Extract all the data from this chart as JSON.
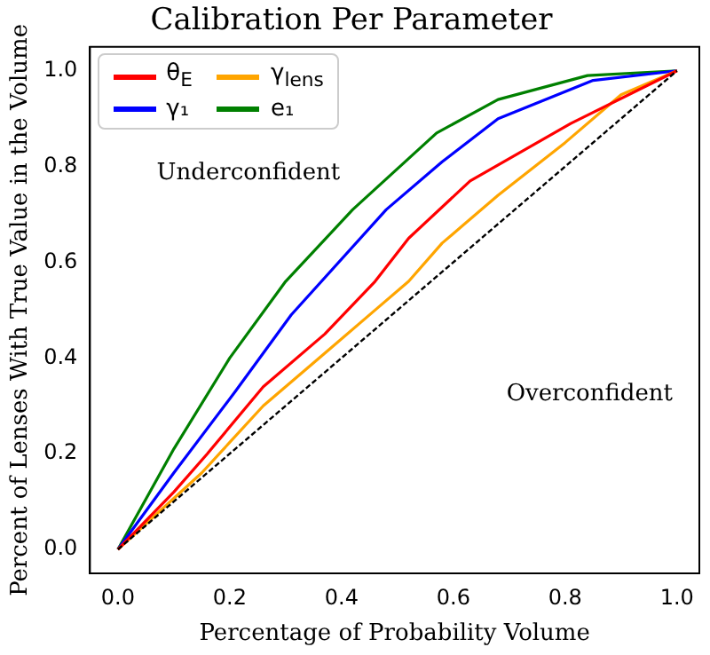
{
  "chart_data": {
    "type": "line",
    "title": "Calibration Per Parameter",
    "xlabel": "Percentage of Probability Volume",
    "ylabel": "Percent of Lenses With True Value in the Volume",
    "xlim": [
      -0.05,
      1.04
    ],
    "ylim": [
      -0.05,
      1.05
    ],
    "xticks": [
      {
        "value": 0,
        "label": "0.0"
      },
      0.2,
      0.4,
      0.6,
      0.8,
      {
        "value": 1,
        "label": "1.0"
      }
    ],
    "yticks": [
      {
        "value": 0,
        "label": "0.0"
      },
      0.2,
      0.4,
      0.6,
      0.8,
      {
        "value": 1,
        "label": "1.0"
      }
    ],
    "grid": false,
    "legend": "top left",
    "marker": "none",
    "line_style": "solid",
    "series": [
      {
        "name": "θ$_{E}$",
        "color": "#ff0000",
        "x": [
          0,
          0.1,
          0.16,
          0.26,
          0.37,
          0.46,
          0.52,
          0.63,
          0.81,
          1.0
        ],
        "values": [
          0,
          0.12,
          0.2,
          0.34,
          0.45,
          0.56,
          0.65,
          0.77,
          0.89,
          1.0
        ]
      },
      {
        "name": "γ$_{lens}$",
        "color": "#ffa500",
        "x": [
          0,
          0.15,
          0.26,
          0.37,
          0.46,
          0.52,
          0.58,
          0.68,
          0.8,
          0.9,
          1.0
        ],
        "values": [
          0,
          0.16,
          0.3,
          0.41,
          0.5,
          0.56,
          0.64,
          0.74,
          0.85,
          0.95,
          1.0
        ]
      },
      {
        "name": "γ₁",
        "color": "#0000ff",
        "x": [
          0,
          0.1,
          0.21,
          0.31,
          0.48,
          0.58,
          0.68,
          0.85,
          1.0
        ],
        "values": [
          0,
          0.16,
          0.33,
          0.49,
          0.71,
          0.81,
          0.9,
          0.98,
          1.0
        ]
      },
      {
        "name": "e₁",
        "color": "#008000",
        "x": [
          0,
          0.1,
          0.2,
          0.3,
          0.42,
          0.57,
          0.68,
          0.84,
          1.0
        ],
        "values": [
          0,
          0.21,
          0.4,
          0.56,
          0.71,
          0.87,
          0.94,
          0.99,
          1.0
        ]
      },
      {
        "color": "#000000",
        "line_style": "dashed",
        "x": [
          0,
          1.0
        ],
        "values": [
          0,
          1.0
        ]
      }
    ],
    "annotations": [
      "Underconfident",
      "Overconfident"
    ]
  }
}
